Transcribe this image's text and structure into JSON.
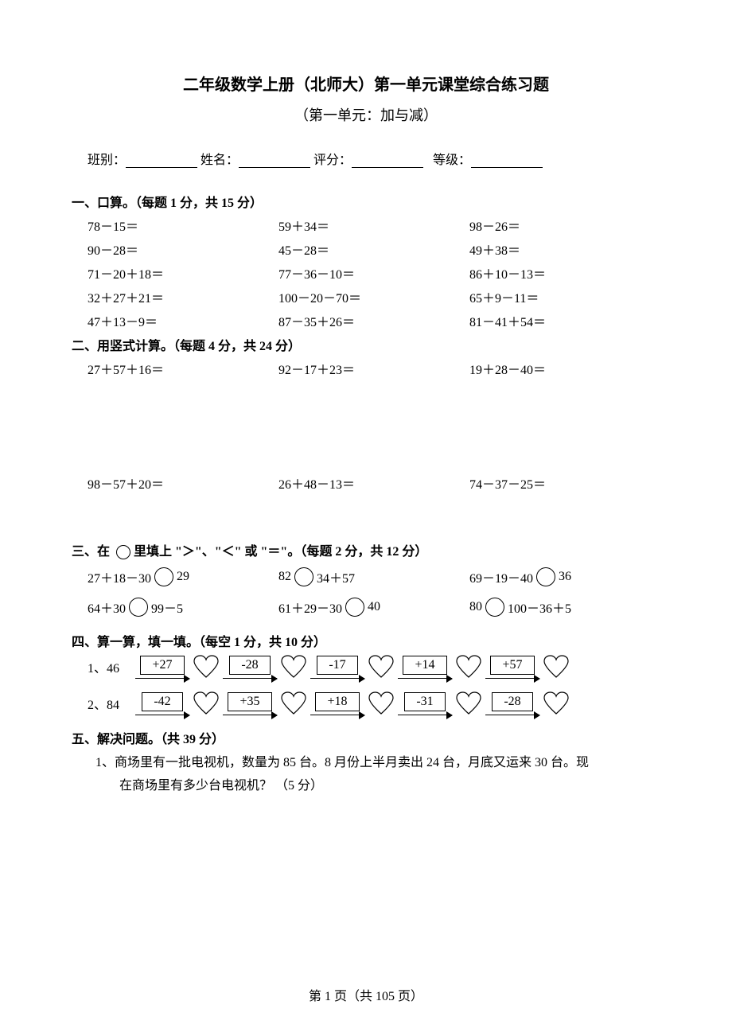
{
  "title": "二年级数学上册（北师大）第一单元课堂综合练习题",
  "subtitle": "（第一单元：加与减）",
  "info": {
    "class_label": "班别：",
    "name_label": "姓名：",
    "score_label": "评分：",
    "grade_label": "等级："
  },
  "sections": {
    "s1": {
      "heading": "一、口算。（每题 1 分，共 15 分）",
      "cells": [
        "78－15＝",
        "59＋34＝",
        "98－26＝",
        "90－28＝",
        "45－28＝",
        "49＋38＝",
        "71－20＋18＝",
        "77－36－10＝",
        "86＋10－13＝",
        "32＋27＋21＝",
        "100－20－70＝",
        "65＋9－11＝",
        "47＋13－9＝",
        "87－35＋26＝",
        "81－41＋54＝"
      ]
    },
    "s2": {
      "heading": "二、用竖式计算。（每题 4 分，共 24 分）",
      "cells": [
        "27＋57＋16＝",
        "92－17＋23＝",
        "19＋28－40＝",
        "98－57＋20＝",
        "26＋48－13＝",
        "74－37－25＝"
      ]
    },
    "s3": {
      "heading": "三、在 ◯ 里填上 \"＞\"、\"＜\" 或 \"＝\"。（每题 2 分，共 12 分）",
      "rows": [
        {
          "left": "27＋18－30",
          "right": "29"
        },
        {
          "left": "82",
          "right": "34＋57"
        },
        {
          "left": "69－19－40",
          "right": "36"
        },
        {
          "left": "64＋30",
          "right": "99－5"
        },
        {
          "left": "61＋29－30",
          "right": "40"
        },
        {
          "left": "80",
          "right": "100－36＋5"
        }
      ]
    },
    "s4": {
      "heading": "四、算一算，填一填。（每空 1 分，共 10 分）",
      "chains": [
        {
          "label": "1、46",
          "ops": [
            "+27",
            "-28",
            "-17",
            "+14",
            "+57"
          ]
        },
        {
          "label": "2、84",
          "ops": [
            "-42",
            "+35",
            "+18",
            "-31",
            "-28"
          ]
        }
      ]
    },
    "s5": {
      "heading": "五、解决问题。（共 39 分）",
      "q1_line1": "1、商场里有一批电视机，数量为 85 台。8 月份上半月卖出 24 台，月底又运来 30 台。现",
      "q1_line2": "在商场里有多少台电视机？ （5 分）"
    }
  },
  "footer": "第 1 页（共 105 页）"
}
